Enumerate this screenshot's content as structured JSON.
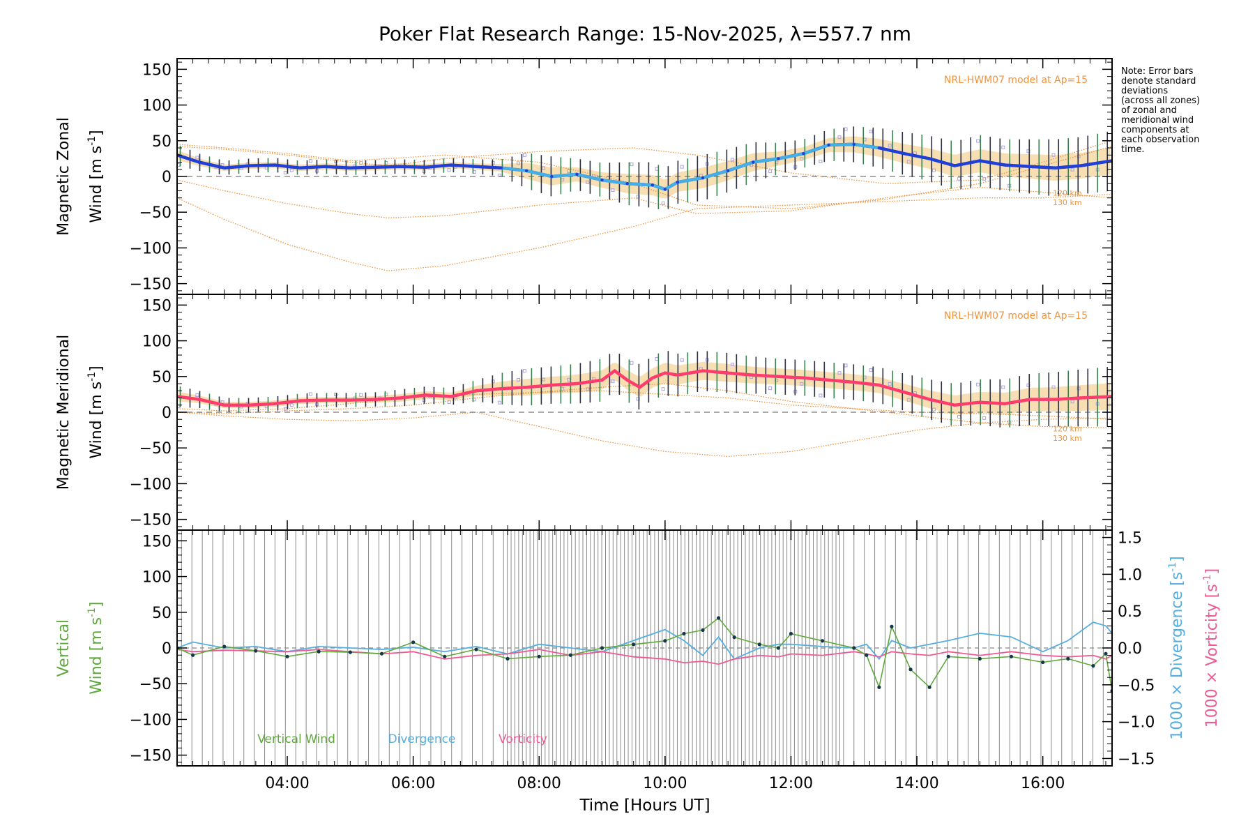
{
  "title": "Poker Flat Research Range: 15-Nov-2025, λ=557.7 nm",
  "note": [
    "Note: Error bars",
    "denote standard",
    "deviations",
    "(across all zones)",
    "of zonal and",
    "meridional wind",
    "components at",
    "each observation",
    "time."
  ],
  "colors": {
    "model": "#f0933a",
    "zonal_dark": "#1f3fd6",
    "zonal_light": "#46aee6",
    "meridional": "#ff3c6e",
    "vertical": "#5ea83c",
    "divergence": "#55aee0",
    "vorticity": "#ef5a93",
    "points": "#17384a",
    "scatter": "#aaa4dc",
    "band": "#f6d9a6",
    "errbar_green": "#3d7e50",
    "errbar_dark": "#2b2f3a",
    "grey_bar": "#8a8a8a"
  },
  "xaxis": {
    "label": "Time [Hours UT]",
    "range": [
      2.25,
      17.1
    ],
    "ticks": [
      4,
      6,
      8,
      10,
      12,
      14,
      16
    ],
    "tick_labels": [
      "04:00",
      "06:00",
      "08:00",
      "10:00",
      "12:00",
      "14:00",
      "16:00"
    ]
  },
  "model_label": "NRL-HWM07 model at Ap=15",
  "model_heights": [
    "120 km",
    "130 km"
  ],
  "chart_data": [
    {
      "type": "line",
      "name": "zonal",
      "ylabel_line1": "Magnetic Zonal",
      "ylabel_line2_text": "Wind [m s",
      "ylabel_exp": "-1",
      "ylabel_close": "]",
      "ylim": [
        -165,
        165
      ],
      "yticks": [
        150,
        100,
        50,
        0,
        -50,
        -100,
        -150
      ],
      "ytick_labels": [
        "150",
        "100",
        "50",
        "0",
        "−50",
        "−100",
        "−150"
      ],
      "x": [
        2.25,
        2.6,
        3.0,
        3.4,
        3.8,
        4.2,
        4.6,
        5.0,
        5.4,
        5.8,
        6.2,
        6.6,
        7.0,
        7.4,
        7.8,
        8.2,
        8.6,
        9.0,
        9.4,
        9.8,
        10.0,
        10.2,
        10.6,
        11.0,
        11.4,
        11.8,
        12.2,
        12.6,
        13.0,
        13.4,
        13.8,
        14.2,
        14.6,
        15.0,
        15.4,
        15.8,
        16.2,
        16.6,
        17.1
      ],
      "values": [
        30,
        20,
        12,
        15,
        16,
        12,
        14,
        12,
        13,
        14,
        13,
        16,
        14,
        12,
        8,
        0,
        3,
        -5,
        -10,
        -12,
        -18,
        -8,
        -2,
        8,
        20,
        25,
        32,
        44,
        45,
        40,
        32,
        25,
        15,
        22,
        16,
        14,
        12,
        15,
        22
      ],
      "err": [
        15,
        12,
        10,
        10,
        10,
        10,
        10,
        10,
        10,
        10,
        10,
        10,
        10,
        12,
        25,
        28,
        22,
        24,
        30,
        32,
        30,
        30,
        32,
        30,
        28,
        22,
        20,
        22,
        25,
        28,
        30,
        32,
        34,
        36,
        36,
        38,
        40,
        40,
        42
      ],
      "model_x": [
        2.25,
        3.0,
        4.0,
        5.0,
        5.6,
        6.5,
        8.0,
        9.5,
        10.5,
        12.0,
        13.5,
        15.0,
        16.0,
        17.1
      ],
      "model_120": [
        42,
        38,
        30,
        20,
        15,
        25,
        35,
        40,
        30,
        5,
        -10,
        -5,
        20,
        50
      ],
      "model_130": [
        45,
        40,
        32,
        22,
        25,
        30,
        20,
        -10,
        -40,
        -45,
        -32,
        -10,
        15,
        42
      ],
      "model_120b": [
        -5,
        -20,
        -38,
        -52,
        -58,
        -55,
        -40,
        -30,
        -52,
        -48,
        -30,
        -15,
        -22,
        -30
      ],
      "model_130b": [
        -30,
        -60,
        -95,
        -120,
        -132,
        -125,
        -100,
        -70,
        -45,
        -40,
        -35,
        -30,
        -30,
        -25
      ]
    },
    {
      "type": "line",
      "name": "meridional",
      "ylabel_line1": "Magnetic Meridional",
      "ylabel_line2_text": "Wind [m s",
      "ylabel_exp": "-1",
      "ylabel_close": "]",
      "ylim": [
        -165,
        165
      ],
      "yticks": [
        150,
        100,
        50,
        0,
        -50,
        -100,
        -150
      ],
      "ytick_labels": [
        "150",
        "100",
        "50",
        "0",
        "−50",
        "−100",
        "−150"
      ],
      "x": [
        2.25,
        2.6,
        3.0,
        3.4,
        3.8,
        4.2,
        4.6,
        5.0,
        5.4,
        5.8,
        6.2,
        6.6,
        7.0,
        7.4,
        7.8,
        8.2,
        8.6,
        9.0,
        9.2,
        9.4,
        9.6,
        9.8,
        10.0,
        10.2,
        10.6,
        11.0,
        11.4,
        11.8,
        12.2,
        12.6,
        13.0,
        13.4,
        13.8,
        14.2,
        14.6,
        15.0,
        15.4,
        15.8,
        16.2,
        16.6,
        17.1
      ],
      "values": [
        22,
        18,
        10,
        10,
        12,
        16,
        17,
        17,
        18,
        20,
        24,
        22,
        30,
        33,
        35,
        38,
        40,
        45,
        58,
        45,
        35,
        48,
        55,
        52,
        58,
        55,
        52,
        50,
        48,
        45,
        42,
        38,
        28,
        18,
        10,
        14,
        12,
        18,
        18,
        20,
        22
      ],
      "err": [
        15,
        12,
        10,
        10,
        10,
        10,
        10,
        10,
        10,
        12,
        12,
        12,
        15,
        22,
        26,
        26,
        28,
        30,
        28,
        30,
        32,
        30,
        32,
        30,
        28,
        28,
        26,
        25,
        25,
        25,
        25,
        25,
        26,
        28,
        30,
        32,
        34,
        36,
        38,
        40,
        42
      ],
      "model_x": [
        2.25,
        3.0,
        4.0,
        5.0,
        6.0,
        7.0,
        8.0,
        9.0,
        10.0,
        11.0,
        12.0,
        13.0,
        14.0,
        15.0,
        16.0,
        17.1
      ],
      "model_120": [
        5,
        2,
        5,
        12,
        20,
        25,
        28,
        30,
        25,
        20,
        10,
        5,
        0,
        -2,
        -5,
        -10
      ],
      "model_130": [
        0,
        -2,
        2,
        5,
        10,
        20,
        28,
        35,
        40,
        30,
        15,
        5,
        -5,
        -15,
        -20,
        -22
      ],
      "model_130b": [
        0,
        -5,
        -10,
        -12,
        -8,
        0,
        -20,
        -40,
        -55,
        -62,
        -55,
        -40,
        -25,
        -15,
        -10,
        -8
      ]
    },
    {
      "type": "line",
      "name": "vertical",
      "ylabel_line1": "Vertical",
      "ylabel_line2_text": "Wind [m s",
      "ylabel_exp": "-1",
      "ylabel_close": "]",
      "ylim": [
        -165,
        165
      ],
      "yticks": [
        150,
        100,
        50,
        0,
        -50,
        -100,
        -150
      ],
      "ytick_labels": [
        "150",
        "100",
        "50",
        "0",
        "−50",
        "−100",
        "−150"
      ],
      "right_ylabel_div": "1000 × Divergence [s",
      "right_ylabel_vort": "1000 × Vorticity [s",
      "right_ylim": [
        -1.6,
        1.6
      ],
      "right_yticks": [
        1.5,
        1.0,
        0.5,
        0.0,
        -0.5,
        -1.0,
        -1.5
      ],
      "right_ytick_labels": [
        "1.5",
        "1.0",
        "0.5",
        "0.0",
        "−0.5",
        "−1.0",
        "−1.5"
      ],
      "legend": [
        "Vertical Wind",
        "Divergence",
        "Vorticity"
      ],
      "x": [
        2.25,
        2.5,
        3.0,
        3.5,
        4.0,
        4.5,
        5.0,
        5.5,
        6.0,
        6.5,
        7.0,
        7.5,
        8.0,
        8.5,
        9.0,
        9.5,
        10.0,
        10.3,
        10.6,
        10.85,
        11.1,
        11.5,
        11.8,
        12.0,
        12.5,
        13.0,
        13.2,
        13.4,
        13.6,
        13.9,
        14.2,
        14.5,
        15.0,
        15.5,
        16.0,
        16.4,
        16.8,
        17.0,
        17.1
      ],
      "values": [
        0,
        -10,
        2,
        -4,
        -12,
        -5,
        -6,
        -8,
        8,
        -12,
        -2,
        -15,
        -12,
        -10,
        0,
        5,
        10,
        20,
        25,
        42,
        15,
        5,
        0,
        20,
        10,
        0,
        -10,
        -55,
        30,
        -30,
        -55,
        -12,
        -15,
        -12,
        -20,
        -15,
        -25,
        -8,
        -60
      ],
      "divergence": [
        0.0,
        0.08,
        0.0,
        0.02,
        -0.05,
        0.02,
        0.0,
        -0.02,
        0.01,
        -0.05,
        0.02,
        -0.08,
        0.05,
        0.0,
        -0.05,
        0.1,
        0.25,
        0.1,
        -0.1,
        0.15,
        -0.15,
        0.0,
        0.05,
        0.05,
        0.02,
        0.0,
        0.05,
        -0.15,
        0.1,
        0.0,
        0.05,
        0.1,
        0.2,
        0.15,
        -0.05,
        0.1,
        0.35,
        0.3,
        0.2
      ],
      "vorticity": [
        -0.02,
        -0.05,
        -0.03,
        -0.04,
        -0.05,
        -0.02,
        -0.05,
        -0.08,
        -0.05,
        -0.15,
        -0.1,
        -0.08,
        -0.02,
        -0.1,
        -0.05,
        -0.12,
        -0.15,
        -0.2,
        -0.18,
        -0.22,
        -0.15,
        -0.1,
        -0.12,
        -0.08,
        -0.1,
        -0.05,
        -0.08,
        -0.12,
        -0.05,
        -0.08,
        -0.1,
        -0.05,
        -0.1,
        -0.05,
        -0.1,
        -0.12,
        -0.1,
        -0.15,
        -0.1
      ]
    }
  ]
}
